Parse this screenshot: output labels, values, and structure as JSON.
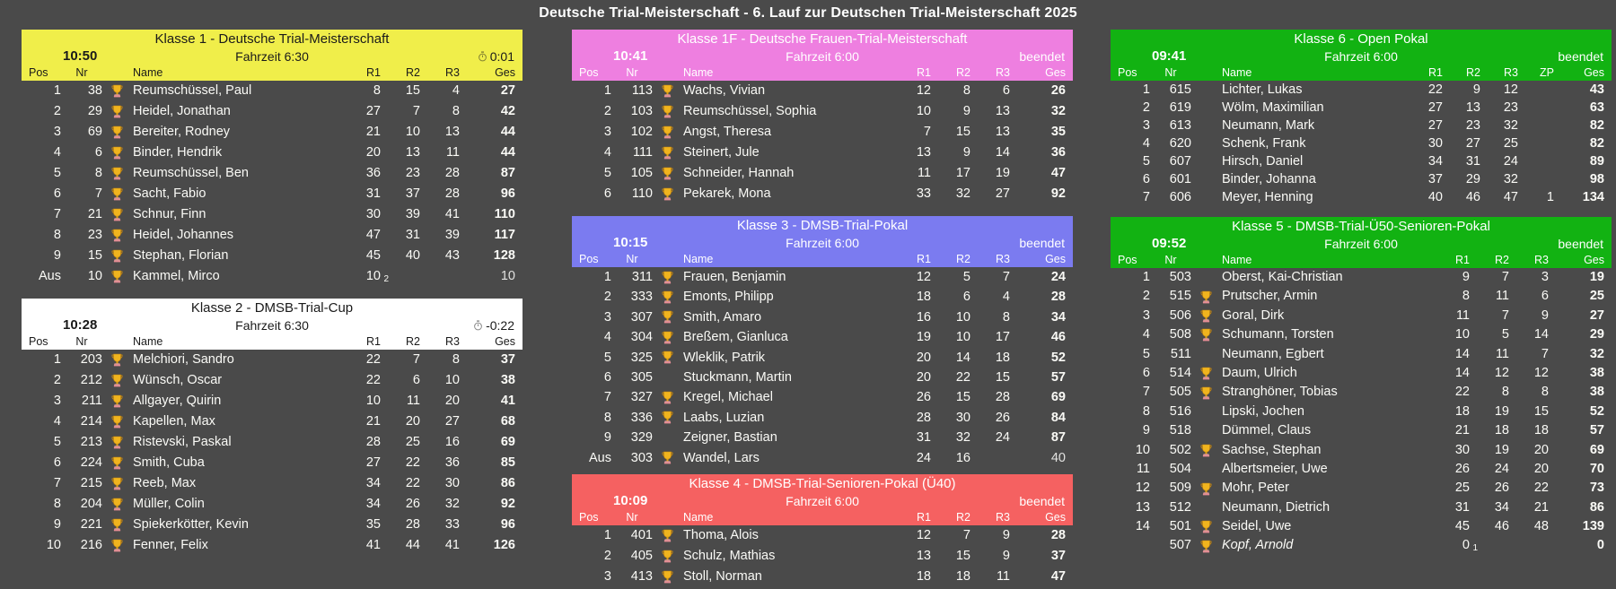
{
  "page": {
    "title": "Deutsche Trial-Meisterschaft - 6. Lauf zur Deutschen Trial-Meisterschaft 2025",
    "background": "#4a4a4a"
  },
  "column_labels": {
    "pos": "Pos",
    "nr": "Nr",
    "name": "Name",
    "r1": "R1",
    "r2": "R2",
    "r3": "R3",
    "zp": "ZP",
    "ges": "Ges"
  },
  "icons": {
    "trophy": "trophy-cup",
    "timer": "stopwatch"
  },
  "tables": [
    {
      "id": "klasse1",
      "column": 0,
      "title": "Klasse 1 - Deutsche Trial-Meisterschaft",
      "start_time": "10:50",
      "fahrzeit": "Fahrzeit 6:30",
      "status_type": "timer",
      "status": "0:01",
      "has_zp": false,
      "colors": {
        "header_bg": "#f0ee4a",
        "header_fg": "#1a1a1a"
      },
      "rows": [
        {
          "pos": "1",
          "nr": "38",
          "trophy": true,
          "name": "Reumschüssel, Paul",
          "r1": "8",
          "r2": "15",
          "r3": "4",
          "ges": "27"
        },
        {
          "pos": "2",
          "nr": "29",
          "trophy": true,
          "name": "Heidel, Jonathan",
          "r1": "27",
          "r2": "7",
          "r3": "8",
          "ges": "42"
        },
        {
          "pos": "3",
          "nr": "69",
          "trophy": true,
          "name": "Bereiter, Rodney",
          "r1": "21",
          "r2": "10",
          "r3": "13",
          "ges": "44"
        },
        {
          "pos": "4",
          "nr": "6",
          "trophy": true,
          "name": "Binder, Hendrik",
          "r1": "20",
          "r2": "13",
          "r3": "11",
          "ges": "44"
        },
        {
          "pos": "5",
          "nr": "8",
          "trophy": true,
          "name": "Reumschüssel, Ben",
          "r1": "36",
          "r2": "23",
          "r3": "28",
          "ges": "87"
        },
        {
          "pos": "6",
          "nr": "7",
          "trophy": true,
          "name": "Sacht, Fabio",
          "r1": "31",
          "r2": "37",
          "r3": "28",
          "ges": "96"
        },
        {
          "pos": "7",
          "nr": "21",
          "trophy": true,
          "name": "Schnur, Finn",
          "r1": "30",
          "r2": "39",
          "r3": "41",
          "ges": "110"
        },
        {
          "pos": "8",
          "nr": "23",
          "trophy": true,
          "name": "Heidel, Johannes",
          "r1": "47",
          "r2": "31",
          "r3": "39",
          "ges": "117"
        },
        {
          "pos": "9",
          "nr": "15",
          "trophy": true,
          "name": "Stephan, Florian",
          "r1": "45",
          "r2": "40",
          "r3": "43",
          "ges": "128"
        },
        {
          "pos": "Aus",
          "nr": "10",
          "trophy": true,
          "name": "Kammel, Mirco",
          "r1": "10",
          "r1_sub": "2",
          "r2": "",
          "r3": "",
          "ges": "10",
          "ges_muted": true
        }
      ]
    },
    {
      "id": "klasse2",
      "column": 0,
      "title": "Klasse 2 - DMSB-Trial-Cup",
      "start_time": "10:28",
      "fahrzeit": "Fahrzeit 6:30",
      "status_type": "timer",
      "status": "-0:22",
      "has_zp": false,
      "colors": {
        "header_bg": "#ffffff",
        "header_fg": "#1a1a1a"
      },
      "rows": [
        {
          "pos": "1",
          "nr": "203",
          "trophy": true,
          "name": "Melchiori, Sandro",
          "r1": "22",
          "r2": "7",
          "r3": "8",
          "ges": "37"
        },
        {
          "pos": "2",
          "nr": "212",
          "trophy": true,
          "name": "Wünsch, Oscar",
          "r1": "22",
          "r2": "6",
          "r3": "10",
          "ges": "38"
        },
        {
          "pos": "3",
          "nr": "211",
          "trophy": true,
          "name": "Allgayer, Quirin",
          "r1": "10",
          "r2": "11",
          "r3": "20",
          "ges": "41"
        },
        {
          "pos": "4",
          "nr": "214",
          "trophy": true,
          "name": "Kapellen, Max",
          "r1": "21",
          "r2": "20",
          "r3": "27",
          "ges": "68"
        },
        {
          "pos": "5",
          "nr": "213",
          "trophy": true,
          "name": "Ristevski, Paskal",
          "r1": "28",
          "r2": "25",
          "r3": "16",
          "ges": "69"
        },
        {
          "pos": "6",
          "nr": "224",
          "trophy": true,
          "name": "Smith, Cuba",
          "r1": "27",
          "r2": "22",
          "r3": "36",
          "ges": "85"
        },
        {
          "pos": "7",
          "nr": "215",
          "trophy": true,
          "name": "Reeb, Max",
          "r1": "34",
          "r2": "22",
          "r3": "30",
          "ges": "86"
        },
        {
          "pos": "8",
          "nr": "204",
          "trophy": true,
          "name": "Müller, Colin",
          "r1": "34",
          "r2": "26",
          "r3": "32",
          "ges": "92"
        },
        {
          "pos": "9",
          "nr": "221",
          "trophy": true,
          "name": "Spiekerkötter, Kevin",
          "r1": "35",
          "r2": "28",
          "r3": "33",
          "ges": "96"
        },
        {
          "pos": "10",
          "nr": "216",
          "trophy": true,
          "name": "Fenner, Felix",
          "r1": "41",
          "r2": "44",
          "r3": "41",
          "ges": "126"
        }
      ]
    },
    {
      "id": "klasse1f",
      "column": 1,
      "title": "Klasse 1F - Deutsche Frauen-Trial-Meisterschaft",
      "start_time": "10:41",
      "fahrzeit": "Fahrzeit 6:00",
      "status_type": "text",
      "status": "beendet",
      "has_zp": false,
      "colors": {
        "header_bg": "#ee7fe0",
        "header_fg": "#ffffff"
      },
      "rows": [
        {
          "pos": "1",
          "nr": "113",
          "trophy": true,
          "name": "Wachs, Vivian",
          "r1": "12",
          "r2": "8",
          "r3": "6",
          "ges": "26"
        },
        {
          "pos": "2",
          "nr": "103",
          "trophy": true,
          "name": "Reumschüssel, Sophia",
          "r1": "10",
          "r2": "9",
          "r3": "13",
          "ges": "32"
        },
        {
          "pos": "3",
          "nr": "102",
          "trophy": true,
          "name": "Angst, Theresa",
          "r1": "7",
          "r2": "15",
          "r3": "13",
          "ges": "35"
        },
        {
          "pos": "4",
          "nr": "111",
          "trophy": true,
          "name": "Steinert, Jule",
          "r1": "13",
          "r2": "9",
          "r3": "14",
          "ges": "36"
        },
        {
          "pos": "5",
          "nr": "105",
          "trophy": true,
          "name": "Schneider, Hannah",
          "r1": "11",
          "r2": "17",
          "r3": "19",
          "ges": "47"
        },
        {
          "pos": "6",
          "nr": "110",
          "trophy": true,
          "name": "Pekarek, Mona",
          "r1": "33",
          "r2": "32",
          "r3": "27",
          "ges": "92"
        }
      ]
    },
    {
      "id": "klasse3",
      "column": 1,
      "title": "Klasse 3 - DMSB-Trial-Pokal",
      "start_time": "10:15",
      "fahrzeit": "Fahrzeit 6:00",
      "status_type": "text",
      "status": "beendet",
      "has_zp": false,
      "colors": {
        "header_bg": "#7b7bf0",
        "header_fg": "#ffffff"
      },
      "rows": [
        {
          "pos": "1",
          "nr": "311",
          "trophy": true,
          "name": "Frauen, Benjamin",
          "r1": "12",
          "r2": "5",
          "r3": "7",
          "ges": "24"
        },
        {
          "pos": "2",
          "nr": "333",
          "trophy": true,
          "name": "Emonts, Philipp",
          "r1": "18",
          "r2": "6",
          "r3": "4",
          "ges": "28"
        },
        {
          "pos": "3",
          "nr": "307",
          "trophy": true,
          "name": "Smith, Amaro",
          "r1": "16",
          "r2": "10",
          "r3": "8",
          "ges": "34"
        },
        {
          "pos": "4",
          "nr": "304",
          "trophy": true,
          "name": "Breßem, Gianluca",
          "r1": "19",
          "r2": "10",
          "r3": "17",
          "ges": "46"
        },
        {
          "pos": "5",
          "nr": "325",
          "trophy": true,
          "name": "Wleklik, Patrik",
          "r1": "20",
          "r2": "14",
          "r3": "18",
          "ges": "52"
        },
        {
          "pos": "6",
          "nr": "305",
          "trophy": false,
          "name": "Stuckmann, Martin",
          "r1": "20",
          "r2": "22",
          "r3": "15",
          "ges": "57"
        },
        {
          "pos": "7",
          "nr": "327",
          "trophy": true,
          "name": "Kregel, Michael",
          "r1": "26",
          "r2": "15",
          "r3": "28",
          "ges": "69"
        },
        {
          "pos": "8",
          "nr": "336",
          "trophy": true,
          "name": "Laabs, Luzian",
          "r1": "28",
          "r2": "30",
          "r3": "26",
          "ges": "84"
        },
        {
          "pos": "9",
          "nr": "329",
          "trophy": false,
          "name": "Zeigner, Bastian",
          "r1": "31",
          "r2": "32",
          "r3": "24",
          "ges": "87"
        },
        {
          "pos": "Aus",
          "nr": "303",
          "trophy": true,
          "name": "Wandel, Lars",
          "r1": "24",
          "r2": "16",
          "r3": "",
          "ges": "40",
          "ges_muted": true
        }
      ]
    },
    {
      "id": "klasse4",
      "column": 1,
      "title": "Klasse 4 - DMSB-Trial-Senioren-Pokal (Ü40)",
      "start_time": "10:09",
      "fahrzeit": "Fahrzeit 6:00",
      "status_type": "text",
      "status": "beendet",
      "has_zp": false,
      "colors": {
        "header_bg": "#f56161",
        "header_fg": "#ffffff"
      },
      "rows": [
        {
          "pos": "1",
          "nr": "401",
          "trophy": true,
          "name": "Thoma, Alois",
          "r1": "12",
          "r2": "7",
          "r3": "9",
          "ges": "28"
        },
        {
          "pos": "2",
          "nr": "405",
          "trophy": true,
          "name": "Schulz, Mathias",
          "r1": "13",
          "r2": "15",
          "r3": "9",
          "ges": "37"
        },
        {
          "pos": "3",
          "nr": "413",
          "trophy": true,
          "name": "Stoll, Norman",
          "r1": "18",
          "r2": "18",
          "r3": "11",
          "ges": "47"
        }
      ]
    },
    {
      "id": "klasse6",
      "column": 2,
      "title": "Klasse 6 - Open Pokal",
      "start_time": "09:41",
      "fahrzeit": "Fahrzeit 6:00",
      "status_type": "text",
      "status": "beendet",
      "has_zp": true,
      "colors": {
        "header_bg": "#12b212",
        "header_fg": "#ffffff"
      },
      "rows": [
        {
          "pos": "1",
          "nr": "615",
          "trophy": false,
          "name": "Lichter, Lukas",
          "r1": "22",
          "r2": "9",
          "r3": "12",
          "zp": "",
          "ges": "43"
        },
        {
          "pos": "2",
          "nr": "619",
          "trophy": false,
          "name": "Wölm, Maximilian",
          "r1": "27",
          "r2": "13",
          "r3": "23",
          "zp": "",
          "ges": "63"
        },
        {
          "pos": "3",
          "nr": "613",
          "trophy": false,
          "name": "Neumann, Mark",
          "r1": "27",
          "r2": "23",
          "r3": "32",
          "zp": "",
          "ges": "82"
        },
        {
          "pos": "4",
          "nr": "620",
          "trophy": false,
          "name": "Schenk, Frank",
          "r1": "30",
          "r2": "27",
          "r3": "25",
          "zp": "",
          "ges": "82"
        },
        {
          "pos": "5",
          "nr": "607",
          "trophy": false,
          "name": "Hirsch, Daniel",
          "r1": "34",
          "r2": "31",
          "r3": "24",
          "zp": "",
          "ges": "89"
        },
        {
          "pos": "6",
          "nr": "601",
          "trophy": false,
          "name": "Binder, Johanna",
          "r1": "37",
          "r2": "29",
          "r3": "32",
          "zp": "",
          "ges": "98"
        },
        {
          "pos": "7",
          "nr": "606",
          "trophy": false,
          "name": "Meyer, Henning",
          "r1": "40",
          "r2": "46",
          "r3": "47",
          "zp": "1",
          "ges": "134"
        }
      ]
    },
    {
      "id": "klasse5",
      "column": 2,
      "title": "Klasse 5 - DMSB-Trial-Ü50-Senioren-Pokal",
      "start_time": "09:52",
      "fahrzeit": "Fahrzeit 6:00",
      "status_type": "text",
      "status": "beendet",
      "has_zp": false,
      "colors": {
        "header_bg": "#12b212",
        "header_fg": "#ffffff"
      },
      "rows": [
        {
          "pos": "1",
          "nr": "503",
          "trophy": false,
          "name": "Oberst, Kai-Christian",
          "r1": "9",
          "r2": "7",
          "r3": "3",
          "ges": "19"
        },
        {
          "pos": "2",
          "nr": "515",
          "trophy": true,
          "name": "Prutscher, Armin",
          "r1": "8",
          "r2": "11",
          "r3": "6",
          "ges": "25"
        },
        {
          "pos": "3",
          "nr": "506",
          "trophy": true,
          "name": "Goral, Dirk",
          "r1": "11",
          "r2": "7",
          "r3": "9",
          "ges": "27"
        },
        {
          "pos": "4",
          "nr": "508",
          "trophy": true,
          "name": "Schumann, Torsten",
          "r1": "10",
          "r2": "5",
          "r3": "14",
          "ges": "29"
        },
        {
          "pos": "5",
          "nr": "511",
          "trophy": false,
          "name": "Neumann, Egbert",
          "r1": "14",
          "r2": "11",
          "r3": "7",
          "ges": "32"
        },
        {
          "pos": "6",
          "nr": "514",
          "trophy": true,
          "name": "Daum, Ulrich",
          "r1": "14",
          "r2": "12",
          "r3": "12",
          "ges": "38"
        },
        {
          "pos": "7",
          "nr": "505",
          "trophy": true,
          "name": "Stranghöner, Tobias",
          "r1": "22",
          "r2": "8",
          "r3": "8",
          "ges": "38"
        },
        {
          "pos": "8",
          "nr": "516",
          "trophy": false,
          "name": "Lipski, Jochen",
          "r1": "18",
          "r2": "19",
          "r3": "15",
          "ges": "52"
        },
        {
          "pos": "9",
          "nr": "518",
          "trophy": false,
          "name": "Dümmel, Claus",
          "r1": "21",
          "r2": "18",
          "r3": "18",
          "ges": "57"
        },
        {
          "pos": "10",
          "nr": "502",
          "trophy": true,
          "name": "Sachse, Stephan",
          "r1": "30",
          "r2": "19",
          "r3": "20",
          "ges": "69"
        },
        {
          "pos": "11",
          "nr": "504",
          "trophy": false,
          "name": "Albertsmeier, Uwe",
          "r1": "26",
          "r2": "24",
          "r3": "20",
          "ges": "70"
        },
        {
          "pos": "12",
          "nr": "509",
          "trophy": true,
          "name": "Mohr, Peter",
          "r1": "25",
          "r2": "26",
          "r3": "22",
          "ges": "73"
        },
        {
          "pos": "13",
          "nr": "512",
          "trophy": false,
          "name": "Neumann, Dietrich",
          "r1": "31",
          "r2": "34",
          "r3": "21",
          "ges": "86"
        },
        {
          "pos": "14",
          "nr": "501",
          "trophy": true,
          "name": "Seidel, Uwe",
          "r1": "45",
          "r2": "46",
          "r3": "48",
          "ges": "139"
        },
        {
          "pos": "",
          "nr": "507",
          "trophy": true,
          "name": "Kopf, Arnold",
          "italic": true,
          "r1": "0",
          "r1_sub": "1",
          "r2": "",
          "r3": "",
          "ges": "0"
        }
      ]
    }
  ]
}
